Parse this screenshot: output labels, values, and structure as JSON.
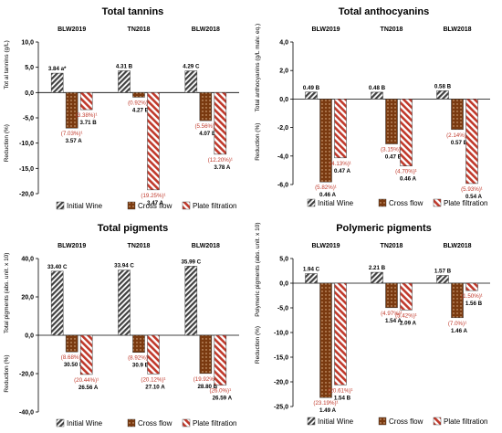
{
  "colors": {
    "initial": "#404040",
    "cross_flow": "#7a3a10",
    "plate": "#c0392b",
    "reduction_label": "#c0392b",
    "axis": "#000000",
    "grid": "#d9d9d9"
  },
  "legend": [
    "Initial Wine",
    "Cross flow",
    "Plate filtration"
  ],
  "chart_data": [
    {
      "type": "bar",
      "title": "Total tannins",
      "ylabel_top": "Tot al tannins (g/L)",
      "ylabel_bottom": "Reduction (%)",
      "categories": [
        "BLW2019",
        "TN2018",
        "BLW2018"
      ],
      "ylim": [
        -20,
        10
      ],
      "yticks": [
        "10,0",
        "5,0",
        "0,0",
        "-5,0",
        "-10,0",
        "-15,0",
        "-20,0"
      ],
      "yticks_values": [
        10,
        5,
        0,
        -5,
        -10,
        -15,
        -20
      ],
      "series": [
        {
          "name": "Initial Wine",
          "values": [
            3.84,
            4.31,
            4.29
          ],
          "labels": [
            "3.84 a*",
            "4.31 B",
            "4.29 C"
          ]
        },
        {
          "name": "Cross flow",
          "values": [
            -7.03,
            -0.92,
            -5.56
          ],
          "reduction_labels": [
            "(7.03%)¹",
            "(0.92%)¹",
            "(5.56%)¹"
          ],
          "value_labels": [
            "3.57 A",
            "4.27 B",
            "4.07 B"
          ]
        },
        {
          "name": "Plate filtration",
          "values": [
            -3.38,
            -19.25,
            -12.2
          ],
          "reduction_labels": [
            "(3.38%)¹",
            "(19.25%)¹",
            "(12.20%)¹"
          ],
          "value_labels": [
            "3.71 B",
            "3.47 A",
            "3.78 A"
          ]
        }
      ]
    },
    {
      "type": "bar",
      "title": "Total anthocyanins",
      "ylabel_top": "Total anthocyanins (g/L malv. eq.)",
      "ylabel_bottom": "Reduction (%)",
      "categories": [
        "BLW2019",
        "TN2018",
        "BLW2018"
      ],
      "ylim": [
        -6,
        4
      ],
      "yticks": [
        "4,0",
        "2,0",
        "0,0",
        "-2,0",
        "-4,0",
        "-6,0"
      ],
      "yticks_values": [
        4,
        2,
        0,
        -2,
        -4,
        -6
      ],
      "series": [
        {
          "name": "Initial Wine",
          "values": [
            0.49,
            0.48,
            0.58
          ],
          "labels": [
            "0.49 B",
            "0.48 B",
            "0.58 B"
          ]
        },
        {
          "name": "Cross flow",
          "values": [
            -5.82,
            -3.15,
            -2.14
          ],
          "reduction_labels": [
            "(5.82%)¹",
            "(3.15%)¹",
            "(2.14%)¹"
          ],
          "value_labels": [
            "0.46 A",
            "0.47 B",
            "0.57 B"
          ]
        },
        {
          "name": "Plate filtration",
          "values": [
            -4.13,
            -4.7,
            -5.93
          ],
          "reduction_labels": [
            "(4.13%)¹",
            "(4.70%)¹",
            "(5.93%)¹"
          ],
          "value_labels": [
            "0.47 A",
            "0.46 A",
            "0.54 A"
          ]
        }
      ]
    },
    {
      "type": "bar",
      "title": "Total pigments",
      "ylabel_top": "Total pigments (abs. unit. x 10)",
      "ylabel_bottom": "Reduction (%)",
      "categories": [
        "BLW2019",
        "TN2018",
        "BLW2018"
      ],
      "ylim": [
        -40,
        40
      ],
      "yticks": [
        "40,0",
        "20,0",
        "0,0",
        "-20,0",
        "-40,0"
      ],
      "yticks_values": [
        40,
        20,
        0,
        -20,
        -40
      ],
      "series": [
        {
          "name": "Initial Wine",
          "values": [
            33.4,
            33.94,
            35.99
          ],
          "labels": [
            "33.40 C",
            "33.94 C",
            "35.99 C"
          ]
        },
        {
          "name": "Cross flow",
          "values": [
            -8.68,
            -8.92,
            -19.92
          ],
          "reduction_labels": [
            "(8.68%)¹",
            "(8.92%)¹",
            "(19.92%)¹"
          ],
          "value_labels": [
            "30.50 B",
            "30.9 B",
            "28.80 B"
          ]
        },
        {
          "name": "Plate filtration",
          "values": [
            -20.44,
            -20.12,
            -26.0
          ],
          "reduction_labels": [
            "(20.44%)¹",
            "(20.12%)¹",
            "(26.0%)¹"
          ],
          "value_labels": [
            "26.56 A",
            "27.10 A",
            "26.59 A"
          ]
        }
      ]
    },
    {
      "type": "bar",
      "title": "Polymeric pigments",
      "ylabel_top": "Polymeric pigments (abs. unit. x 10)",
      "ylabel_bottom": "Reduction (%)",
      "categories": [
        "BLW2019",
        "TN2018",
        "BLW2018"
      ],
      "ylim": [
        -25,
        5
      ],
      "yticks": [
        "5,0",
        "0,0",
        "-5,0",
        "-10,0",
        "-15,0",
        "-20,0",
        "-25,0"
      ],
      "yticks_values": [
        5,
        0,
        -5,
        -10,
        -15,
        -20,
        -25
      ],
      "series": [
        {
          "name": "Initial Wine",
          "values": [
            1.94,
            2.21,
            1.57
          ],
          "labels": [
            "1.94 C",
            "2.21 B",
            "1.57 B"
          ]
        },
        {
          "name": "Cross flow",
          "values": [
            -23.19,
            -4.97,
            -7.0
          ],
          "reduction_labels": [
            "(23.19%)¹",
            "(4.97%)¹",
            "(7.0%)¹"
          ],
          "value_labels": [
            "1.49 A",
            "1.54 A",
            "1.46 A"
          ]
        },
        {
          "name": "Plate filtration",
          "values": [
            -20.61,
            -5.42,
            -1.5
          ],
          "reduction_labels": [
            "(20.61%)¹",
            "(5.42%)¹",
            "(1.50%)¹"
          ],
          "value_labels": [
            "1.54 B",
            "2.09 A",
            "1.56 B"
          ]
        }
      ]
    }
  ]
}
